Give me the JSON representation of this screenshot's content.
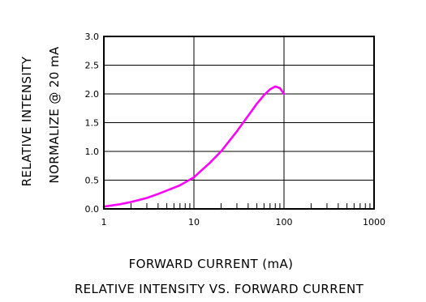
{
  "chart_data": {
    "type": "line",
    "title": "RELATIVE INTENSITY VS. FORWARD CURRENT",
    "xlabel": "FORWARD CURRENT (mA)",
    "ylabel_line1": "RELATIVE INTENSITY",
    "ylabel_line2": "NORMALIZE @ 20 mA",
    "x_scale": "log",
    "xlim": [
      1,
      1000
    ],
    "ylim": [
      0,
      3.0
    ],
    "x_ticks": [
      1,
      10,
      100,
      1000
    ],
    "x_tick_labels": [
      "1",
      "10",
      "100",
      "1000"
    ],
    "y_ticks": [
      0,
      0.5,
      1.0,
      1.5,
      2.0,
      2.5,
      3.0
    ],
    "y_tick_labels": [
      "0.0",
      "0.5",
      "1.0",
      "1.5",
      "2.0",
      "2.5",
      "3.0"
    ],
    "grid": true,
    "series": [
      {
        "color": "#ff00ff",
        "x": [
          1,
          1.5,
          2,
          3,
          4,
          5,
          7,
          10,
          15,
          20,
          30,
          40,
          50,
          60,
          70,
          80,
          90,
          100
        ],
        "y": [
          0.04,
          0.08,
          0.12,
          0.19,
          0.26,
          0.32,
          0.41,
          0.55,
          0.8,
          1.0,
          1.35,
          1.62,
          1.83,
          1.98,
          2.08,
          2.13,
          2.1,
          2.0
        ]
      }
    ]
  }
}
